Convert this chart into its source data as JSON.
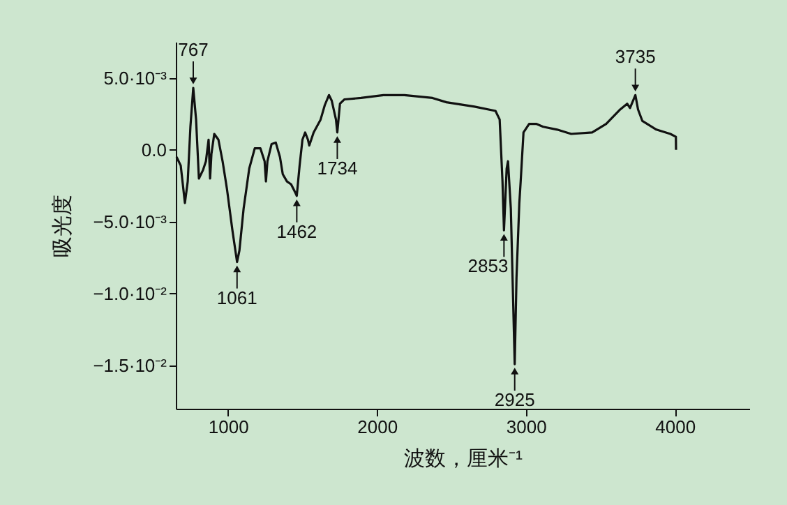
{
  "chart_data": {
    "type": "line",
    "xlabel": "波数，厘米⁻¹",
    "ylabel": "吸光度",
    "x": [
      655,
      683,
      711,
      730,
      748,
      767,
      786,
      805,
      833,
      852,
      870,
      880,
      889,
      908,
      936,
      964,
      993,
      1030,
      1061,
      1077,
      1105,
      1143,
      1180,
      1218,
      1246,
      1255,
      1265,
      1293,
      1321,
      1349,
      1368,
      1396,
      1424,
      1453,
      1462,
      1481,
      1500,
      1518,
      1537,
      1546,
      1575,
      1622,
      1650,
      1678,
      1697,
      1725,
      1734,
      1752,
      1781,
      1893,
      2044,
      2185,
      2279,
      2373,
      2467,
      2655,
      2796,
      2824,
      2843,
      2853,
      2871,
      2880,
      2899,
      2925,
      2937,
      2956,
      2965,
      2984,
      3022,
      3069,
      3116,
      3210,
      3304,
      3445,
      3539,
      3633,
      3680,
      3699,
      3735,
      3753,
      3782,
      3876,
      3970,
      4007,
      4008
    ],
    "series": [
      {
        "color": "#111111",
        "values": [
          -0.0005,
          -0.0011,
          -0.0037,
          -0.0022,
          0.0016,
          0.0043,
          0.0021,
          -0.002,
          -0.0014,
          -0.0008,
          0.0007,
          -0.002,
          -0.0003,
          0.0011,
          0.0007,
          -0.0008,
          -0.0027,
          -0.0056,
          -0.0078,
          -0.007,
          -0.0041,
          -0.0013,
          0.0001,
          0.0001,
          -0.0008,
          -0.0022,
          -0.0008,
          0.0004,
          0.0005,
          -0.0005,
          -0.0017,
          -0.0022,
          -0.0024,
          -0.003,
          -0.0032,
          -0.0011,
          0.0007,
          0.0012,
          0.0007,
          0.0003,
          0.0012,
          0.0021,
          0.0031,
          0.0038,
          0.0034,
          0.0021,
          0.0012,
          0.0032,
          0.0035,
          0.0036,
          0.0038,
          0.0038,
          0.0037,
          0.0036,
          0.0033,
          0.003,
          0.0027,
          0.0021,
          -0.0022,
          -0.0056,
          -0.0013,
          -0.0008,
          -0.0041,
          -0.0149,
          -0.0089,
          -0.0037,
          -0.0022,
          0.0012,
          0.0018,
          0.0018,
          0.0016,
          0.0014,
          0.0011,
          0.0012,
          0.0018,
          0.0028,
          0.0032,
          0.0029,
          0.0038,
          0.0028,
          0.002,
          0.0014,
          0.0011,
          0.0009,
          0.0
        ]
      }
    ],
    "xlim": [
      650,
      4500
    ],
    "xticks": [
      1000,
      2000,
      3000,
      4000
    ],
    "ylim": [
      -0.018,
      0.0075
    ],
    "yticks": [
      {
        "value": 0.005,
        "label": "5.0·10⁻³"
      },
      {
        "value": 0,
        "label": "0.0"
      },
      {
        "value": -0.005,
        "label": "−5.0·10⁻³"
      },
      {
        "value": -0.01,
        "label": "−1.0·10⁻²"
      },
      {
        "value": -0.015,
        "label": "−1.5·10⁻²"
      }
    ],
    "grid": false,
    "marker": "none",
    "line_style": "solid",
    "annotations": [
      {
        "text": "767",
        "x": 767,
        "y": 0.0043
      },
      {
        "text": "1061",
        "x": 1061,
        "y": -0.0078
      },
      {
        "text": "1462",
        "x": 1462,
        "y": -0.0032
      },
      {
        "text": "1734",
        "x": 1734,
        "y": 0.0012
      },
      {
        "text": "2853",
        "x": 2853,
        "y": -0.0056
      },
      {
        "text": "2925",
        "x": 2925,
        "y": -0.0149
      },
      {
        "text": "3735",
        "x": 3735,
        "y": 0.0038
      }
    ]
  }
}
